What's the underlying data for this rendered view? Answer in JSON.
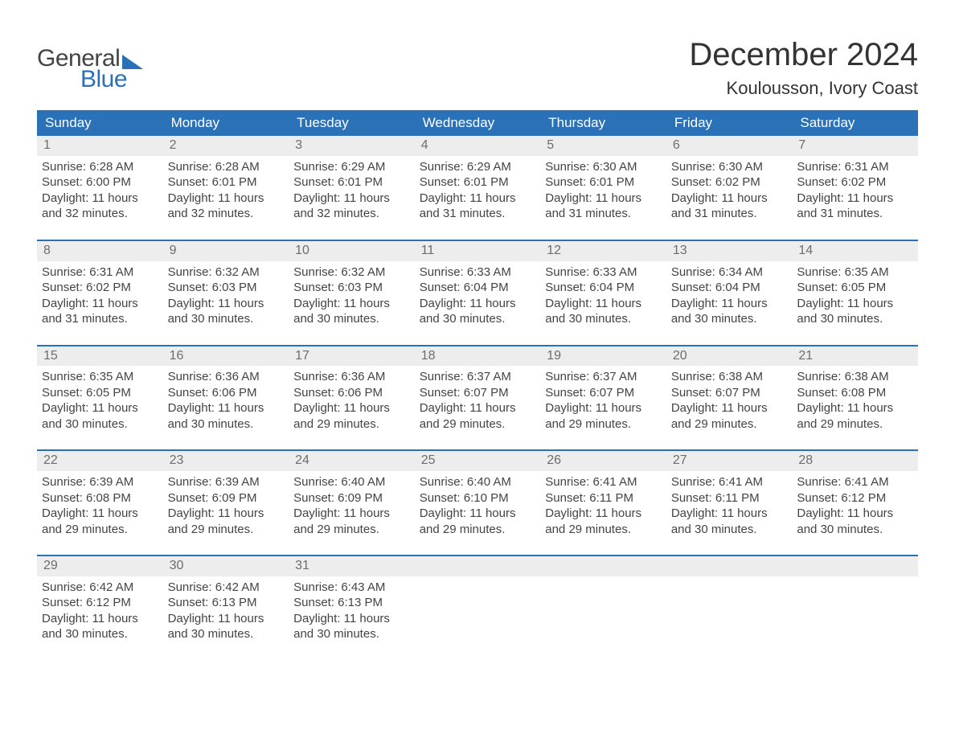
{
  "logo": {
    "word1": "General",
    "word2": "Blue"
  },
  "title": "December 2024",
  "location": "Koulousson, Ivory Coast",
  "colors": {
    "header_blue": "#2a71b8",
    "daynum_bg": "#ededed",
    "text": "#444444",
    "bg": "#ffffff"
  },
  "dow": [
    "Sunday",
    "Monday",
    "Tuesday",
    "Wednesday",
    "Thursday",
    "Friday",
    "Saturday"
  ],
  "weeks": [
    [
      {
        "n": "1",
        "sr": "Sunrise: 6:28 AM",
        "ss": "Sunset: 6:00 PM",
        "dl": "Daylight: 11 hours and 32 minutes."
      },
      {
        "n": "2",
        "sr": "Sunrise: 6:28 AM",
        "ss": "Sunset: 6:01 PM",
        "dl": "Daylight: 11 hours and 32 minutes."
      },
      {
        "n": "3",
        "sr": "Sunrise: 6:29 AM",
        "ss": "Sunset: 6:01 PM",
        "dl": "Daylight: 11 hours and 32 minutes."
      },
      {
        "n": "4",
        "sr": "Sunrise: 6:29 AM",
        "ss": "Sunset: 6:01 PM",
        "dl": "Daylight: 11 hours and 31 minutes."
      },
      {
        "n": "5",
        "sr": "Sunrise: 6:30 AM",
        "ss": "Sunset: 6:01 PM",
        "dl": "Daylight: 11 hours and 31 minutes."
      },
      {
        "n": "6",
        "sr": "Sunrise: 6:30 AM",
        "ss": "Sunset: 6:02 PM",
        "dl": "Daylight: 11 hours and 31 minutes."
      },
      {
        "n": "7",
        "sr": "Sunrise: 6:31 AM",
        "ss": "Sunset: 6:02 PM",
        "dl": "Daylight: 11 hours and 31 minutes."
      }
    ],
    [
      {
        "n": "8",
        "sr": "Sunrise: 6:31 AM",
        "ss": "Sunset: 6:02 PM",
        "dl": "Daylight: 11 hours and 31 minutes."
      },
      {
        "n": "9",
        "sr": "Sunrise: 6:32 AM",
        "ss": "Sunset: 6:03 PM",
        "dl": "Daylight: 11 hours and 30 minutes."
      },
      {
        "n": "10",
        "sr": "Sunrise: 6:32 AM",
        "ss": "Sunset: 6:03 PM",
        "dl": "Daylight: 11 hours and 30 minutes."
      },
      {
        "n": "11",
        "sr": "Sunrise: 6:33 AM",
        "ss": "Sunset: 6:04 PM",
        "dl": "Daylight: 11 hours and 30 minutes."
      },
      {
        "n": "12",
        "sr": "Sunrise: 6:33 AM",
        "ss": "Sunset: 6:04 PM",
        "dl": "Daylight: 11 hours and 30 minutes."
      },
      {
        "n": "13",
        "sr": "Sunrise: 6:34 AM",
        "ss": "Sunset: 6:04 PM",
        "dl": "Daylight: 11 hours and 30 minutes."
      },
      {
        "n": "14",
        "sr": "Sunrise: 6:35 AM",
        "ss": "Sunset: 6:05 PM",
        "dl": "Daylight: 11 hours and 30 minutes."
      }
    ],
    [
      {
        "n": "15",
        "sr": "Sunrise: 6:35 AM",
        "ss": "Sunset: 6:05 PM",
        "dl": "Daylight: 11 hours and 30 minutes."
      },
      {
        "n": "16",
        "sr": "Sunrise: 6:36 AM",
        "ss": "Sunset: 6:06 PM",
        "dl": "Daylight: 11 hours and 30 minutes."
      },
      {
        "n": "17",
        "sr": "Sunrise: 6:36 AM",
        "ss": "Sunset: 6:06 PM",
        "dl": "Daylight: 11 hours and 29 minutes."
      },
      {
        "n": "18",
        "sr": "Sunrise: 6:37 AM",
        "ss": "Sunset: 6:07 PM",
        "dl": "Daylight: 11 hours and 29 minutes."
      },
      {
        "n": "19",
        "sr": "Sunrise: 6:37 AM",
        "ss": "Sunset: 6:07 PM",
        "dl": "Daylight: 11 hours and 29 minutes."
      },
      {
        "n": "20",
        "sr": "Sunrise: 6:38 AM",
        "ss": "Sunset: 6:07 PM",
        "dl": "Daylight: 11 hours and 29 minutes."
      },
      {
        "n": "21",
        "sr": "Sunrise: 6:38 AM",
        "ss": "Sunset: 6:08 PM",
        "dl": "Daylight: 11 hours and 29 minutes."
      }
    ],
    [
      {
        "n": "22",
        "sr": "Sunrise: 6:39 AM",
        "ss": "Sunset: 6:08 PM",
        "dl": "Daylight: 11 hours and 29 minutes."
      },
      {
        "n": "23",
        "sr": "Sunrise: 6:39 AM",
        "ss": "Sunset: 6:09 PM",
        "dl": "Daylight: 11 hours and 29 minutes."
      },
      {
        "n": "24",
        "sr": "Sunrise: 6:40 AM",
        "ss": "Sunset: 6:09 PM",
        "dl": "Daylight: 11 hours and 29 minutes."
      },
      {
        "n": "25",
        "sr": "Sunrise: 6:40 AM",
        "ss": "Sunset: 6:10 PM",
        "dl": "Daylight: 11 hours and 29 minutes."
      },
      {
        "n": "26",
        "sr": "Sunrise: 6:41 AM",
        "ss": "Sunset: 6:11 PM",
        "dl": "Daylight: 11 hours and 29 minutes."
      },
      {
        "n": "27",
        "sr": "Sunrise: 6:41 AM",
        "ss": "Sunset: 6:11 PM",
        "dl": "Daylight: 11 hours and 30 minutes."
      },
      {
        "n": "28",
        "sr": "Sunrise: 6:41 AM",
        "ss": "Sunset: 6:12 PM",
        "dl": "Daylight: 11 hours and 30 minutes."
      }
    ],
    [
      {
        "n": "29",
        "sr": "Sunrise: 6:42 AM",
        "ss": "Sunset: 6:12 PM",
        "dl": "Daylight: 11 hours and 30 minutes."
      },
      {
        "n": "30",
        "sr": "Sunrise: 6:42 AM",
        "ss": "Sunset: 6:13 PM",
        "dl": "Daylight: 11 hours and 30 minutes."
      },
      {
        "n": "31",
        "sr": "Sunrise: 6:43 AM",
        "ss": "Sunset: 6:13 PM",
        "dl": "Daylight: 11 hours and 30 minutes."
      },
      null,
      null,
      null,
      null
    ]
  ]
}
